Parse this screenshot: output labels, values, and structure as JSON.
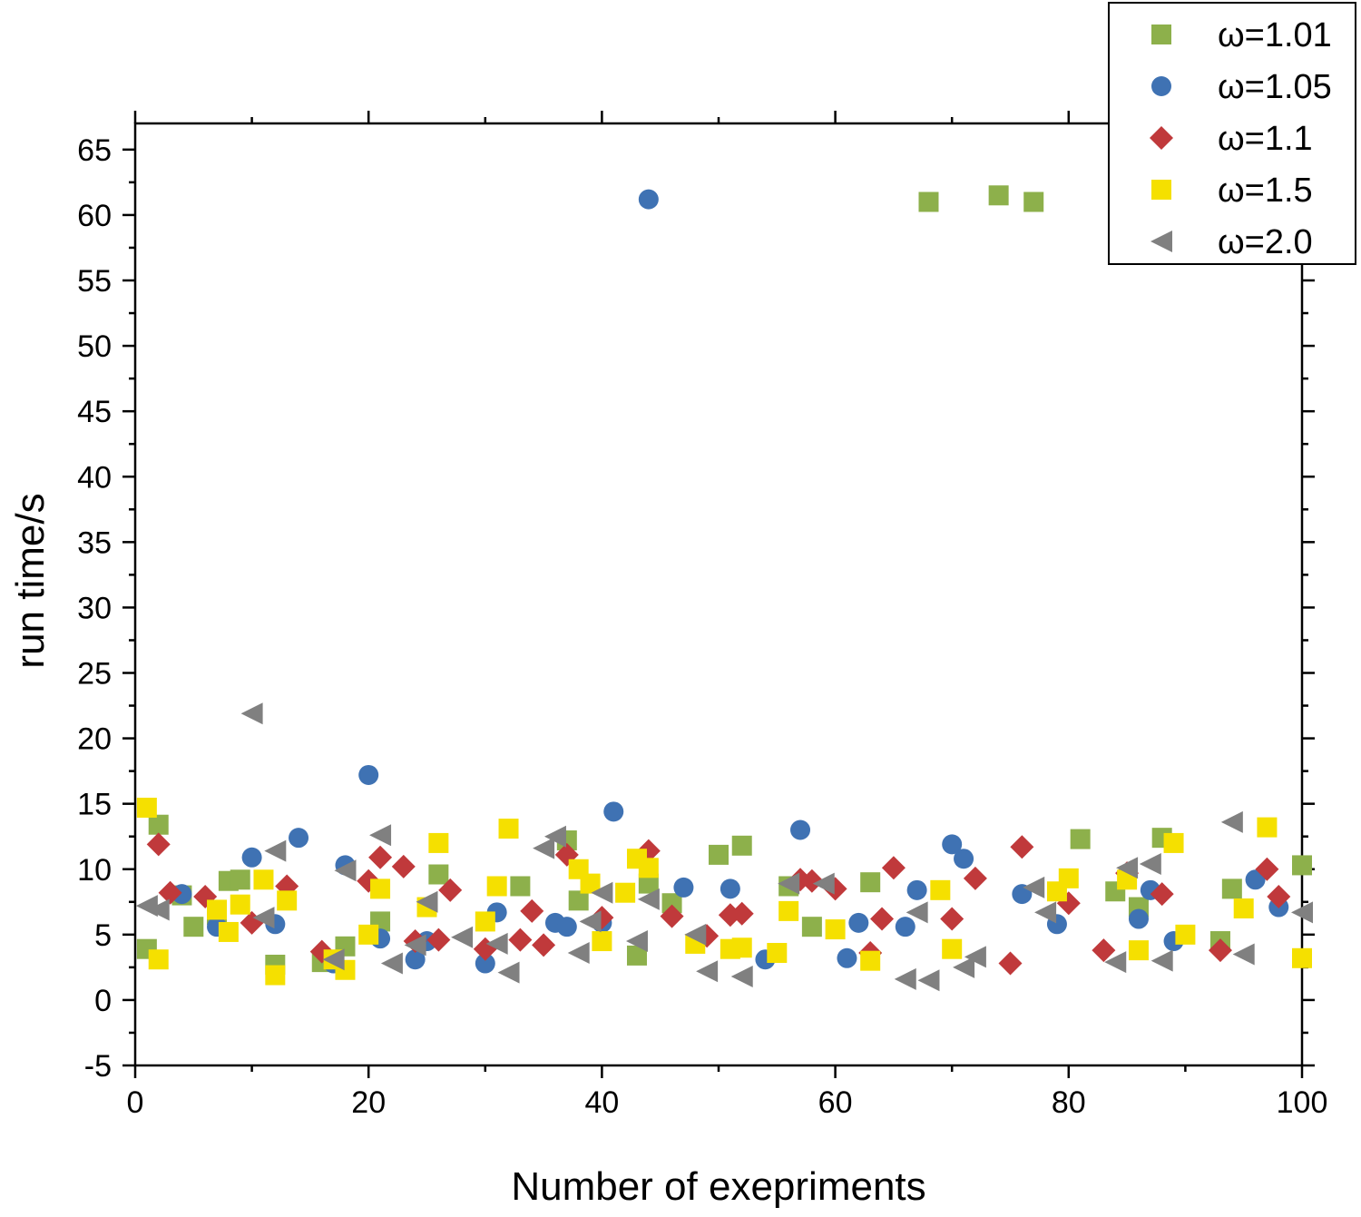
{
  "chart_data": {
    "type": "scatter",
    "title": "",
    "xlabel": "Number of exepriments",
    "ylabel": "run time/s",
    "xlim": [
      0,
      100
    ],
    "ylim": [
      -5,
      67
    ],
    "xticks": [
      0,
      20,
      40,
      60,
      80,
      100
    ],
    "xtick_labels": [
      "0",
      "20",
      "40",
      "60",
      "80",
      "100"
    ],
    "yticks": [
      -5,
      0,
      5,
      10,
      15,
      20,
      25,
      30,
      35,
      40,
      45,
      50,
      55,
      60,
      65
    ],
    "ytick_labels": [
      "-5",
      "0",
      "5",
      "10",
      "15",
      "20",
      "25",
      "30",
      "35",
      "40",
      "45",
      "50",
      "55",
      "60",
      "65"
    ],
    "grid": false,
    "legend_position": "top-right",
    "series": [
      {
        "name": "ω=1.01",
        "marker": "square",
        "color": "#8db04b",
        "points": [
          [
            1,
            3.9
          ],
          [
            2,
            13.4
          ],
          [
            4,
            8.0
          ],
          [
            5,
            5.6
          ],
          [
            7,
            6.5
          ],
          [
            8,
            9.1
          ],
          [
            9,
            9.2
          ],
          [
            12,
            2.7
          ],
          [
            16,
            2.9
          ],
          [
            18,
            4.1
          ],
          [
            21,
            6.0
          ],
          [
            26,
            9.6
          ],
          [
            33,
            8.7
          ],
          [
            37,
            12.2
          ],
          [
            38,
            7.6
          ],
          [
            43,
            3.4
          ],
          [
            44,
            8.9
          ],
          [
            46,
            7.4
          ],
          [
            50,
            11.1
          ],
          [
            52,
            11.8
          ],
          [
            56,
            8.7
          ],
          [
            58,
            5.6
          ],
          [
            63,
            9.0
          ],
          [
            68,
            61.0
          ],
          [
            74,
            61.5
          ],
          [
            77,
            61.0
          ],
          [
            81,
            12.3
          ],
          [
            84,
            8.3
          ],
          [
            86,
            7.1
          ],
          [
            88,
            12.4
          ],
          [
            93,
            4.5
          ],
          [
            94,
            8.5
          ],
          [
            100,
            10.3
          ]
        ]
      },
      {
        "name": "ω=1.05",
        "marker": "circle",
        "color": "#3f72b3",
        "points": [
          [
            4,
            8.1
          ],
          [
            7,
            5.6
          ],
          [
            10,
            10.9
          ],
          [
            12,
            5.8
          ],
          [
            14,
            12.4
          ],
          [
            17,
            2.8
          ],
          [
            18,
            10.3
          ],
          [
            20,
            17.2
          ],
          [
            21,
            4.7
          ],
          [
            24,
            3.1
          ],
          [
            25,
            4.5
          ],
          [
            30,
            2.8
          ],
          [
            31,
            6.7
          ],
          [
            36,
            5.9
          ],
          [
            37,
            5.6
          ],
          [
            40,
            5.9
          ],
          [
            41,
            14.4
          ],
          [
            44,
            61.2
          ],
          [
            47,
            8.6
          ],
          [
            51,
            8.5
          ],
          [
            54,
            3.1
          ],
          [
            57,
            13.0
          ],
          [
            61,
            3.2
          ],
          [
            62,
            5.9
          ],
          [
            66,
            5.6
          ],
          [
            67,
            8.4
          ],
          [
            70,
            11.9
          ],
          [
            71,
            10.8
          ],
          [
            76,
            8.1
          ],
          [
            79,
            5.8
          ],
          [
            86,
            6.2
          ],
          [
            87,
            8.4
          ],
          [
            89,
            4.5
          ],
          [
            96,
            9.2
          ],
          [
            98,
            7.1
          ]
        ]
      },
      {
        "name": "ω=1.1",
        "marker": "diamond",
        "color": "#c0393b",
        "points": [
          [
            2,
            11.9
          ],
          [
            3,
            8.2
          ],
          [
            6,
            7.9
          ],
          [
            10,
            5.9
          ],
          [
            13,
            8.7
          ],
          [
            16,
            3.7
          ],
          [
            20,
            9.1
          ],
          [
            21,
            10.9
          ],
          [
            23,
            10.2
          ],
          [
            24,
            4.5
          ],
          [
            26,
            4.6
          ],
          [
            27,
            8.4
          ],
          [
            30,
            3.9
          ],
          [
            33,
            4.6
          ],
          [
            34,
            6.8
          ],
          [
            35,
            4.2
          ],
          [
            37,
            11.1
          ],
          [
            40,
            6.3
          ],
          [
            44,
            11.4
          ],
          [
            46,
            6.4
          ],
          [
            49,
            4.9
          ],
          [
            51,
            6.5
          ],
          [
            52,
            6.6
          ],
          [
            57,
            9.2
          ],
          [
            58,
            9.1
          ],
          [
            60,
            8.5
          ],
          [
            63,
            3.6
          ],
          [
            64,
            6.2
          ],
          [
            65,
            10.1
          ],
          [
            70,
            6.2
          ],
          [
            72,
            9.3
          ],
          [
            75,
            2.8
          ],
          [
            76,
            11.7
          ],
          [
            80,
            7.4
          ],
          [
            83,
            3.8
          ],
          [
            85,
            9.7
          ],
          [
            88,
            8.1
          ],
          [
            93,
            3.8
          ],
          [
            97,
            10.0
          ],
          [
            98,
            7.9
          ]
        ]
      },
      {
        "name": "ω=1.5",
        "marker": "square",
        "color": "#f5e000",
        "points": [
          [
            1,
            14.7
          ],
          [
            2,
            3.1
          ],
          [
            7,
            6.9
          ],
          [
            8,
            5.2
          ],
          [
            9,
            7.3
          ],
          [
            11,
            9.2
          ],
          [
            12,
            1.9
          ],
          [
            13,
            7.6
          ],
          [
            17,
            3.1
          ],
          [
            18,
            2.3
          ],
          [
            20,
            5.0
          ],
          [
            21,
            8.5
          ],
          [
            25,
            7.1
          ],
          [
            26,
            12.0
          ],
          [
            30,
            6.0
          ],
          [
            31,
            8.7
          ],
          [
            32,
            13.1
          ],
          [
            38,
            10.0
          ],
          [
            39,
            8.9
          ],
          [
            40,
            4.5
          ],
          [
            42,
            8.2
          ],
          [
            43,
            10.8
          ],
          [
            44,
            10.1
          ],
          [
            48,
            4.3
          ],
          [
            51,
            3.9
          ],
          [
            52,
            4.0
          ],
          [
            55,
            3.6
          ],
          [
            56,
            6.8
          ],
          [
            60,
            5.4
          ],
          [
            63,
            3.0
          ],
          [
            69,
            8.4
          ],
          [
            70,
            3.9
          ],
          [
            79,
            8.3
          ],
          [
            80,
            9.3
          ],
          [
            85,
            9.2
          ],
          [
            86,
            3.8
          ],
          [
            89,
            12.0
          ],
          [
            90,
            5.0
          ],
          [
            95,
            7.0
          ],
          [
            97,
            13.2
          ],
          [
            100,
            3.2
          ]
        ]
      },
      {
        "name": "ω=2.0",
        "marker": "triangle-left",
        "color": "#808080",
        "points": [
          [
            1,
            7.2
          ],
          [
            2,
            6.9
          ],
          [
            10,
            21.9
          ],
          [
            11,
            6.3
          ],
          [
            12,
            11.4
          ],
          [
            17,
            3.1
          ],
          [
            18,
            9.9
          ],
          [
            22,
            2.8
          ],
          [
            21,
            12.6
          ],
          [
            24,
            4.2
          ],
          [
            25,
            7.5
          ],
          [
            28,
            4.8
          ],
          [
            31,
            4.3
          ],
          [
            32,
            2.1
          ],
          [
            35,
            11.6
          ],
          [
            36,
            12.5
          ],
          [
            38,
            3.6
          ],
          [
            39,
            6.0
          ],
          [
            40,
            8.2
          ],
          [
            43,
            4.5
          ],
          [
            44,
            7.7
          ],
          [
            48,
            5.0
          ],
          [
            49,
            2.2
          ],
          [
            52,
            1.8
          ],
          [
            56,
            8.9
          ],
          [
            59,
            8.9
          ],
          [
            66,
            1.6
          ],
          [
            67,
            6.7
          ],
          [
            68,
            1.5
          ],
          [
            71,
            2.5
          ],
          [
            72,
            3.3
          ],
          [
            77,
            8.6
          ],
          [
            78,
            6.7
          ],
          [
            84,
            2.9
          ],
          [
            85,
            10.1
          ],
          [
            87,
            10.4
          ],
          [
            88,
            3.0
          ],
          [
            94,
            13.6
          ],
          [
            95,
            3.5
          ],
          [
            100,
            6.7
          ]
        ]
      }
    ]
  }
}
